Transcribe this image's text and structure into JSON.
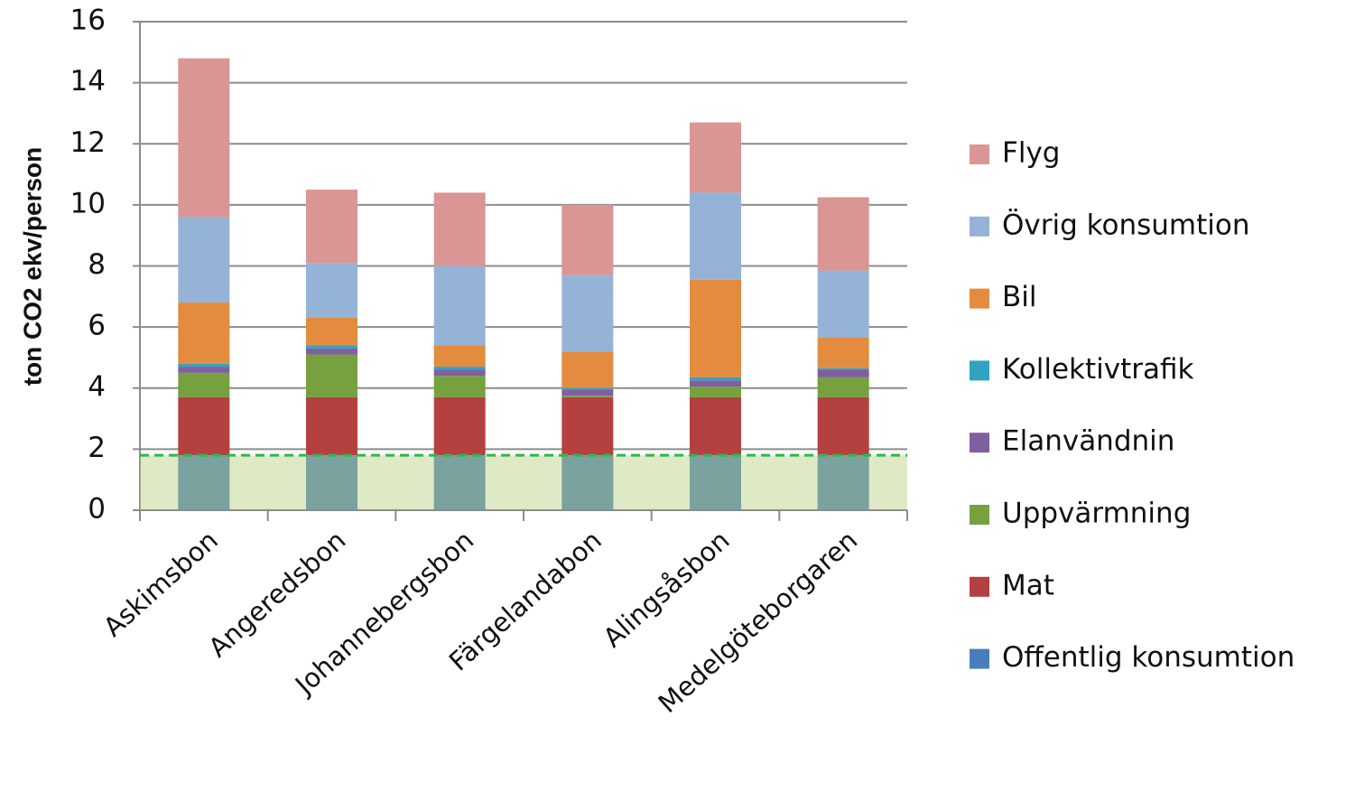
{
  "chart_data": {
    "type": "stacked_bar",
    "y_label": "ton CO2 ekv/person",
    "categories": [
      "Askimsbon",
      "Angeredsbon",
      "Johannebergsbon",
      "Färgelandabon",
      "Alingsåsbon",
      "Medelgöteborgaren"
    ],
    "series": [
      {
        "name": "Offentlig konsumtion",
        "color": "#4a7ebb",
        "values": [
          1.8,
          1.8,
          1.8,
          1.8,
          1.8,
          1.8
        ]
      },
      {
        "name": "Mat",
        "color": "#b54040",
        "values": [
          1.9,
          1.9,
          1.9,
          1.9,
          1.9,
          1.9
        ]
      },
      {
        "name": "Uppvärmning",
        "color": "#77a03f",
        "values": [
          0.8,
          1.4,
          0.7,
          0.05,
          0.35,
          0.65
        ]
      },
      {
        "name": "Elanvändnin",
        "color": "#7f5fa0",
        "values": [
          0.2,
          0.2,
          0.2,
          0.2,
          0.2,
          0.25
        ]
      },
      {
        "name": "Kollektivtrafik",
        "color": "#31a2c0",
        "values": [
          0.1,
          0.1,
          0.1,
          0.05,
          0.1,
          0.05
        ]
      },
      {
        "name": "Bil",
        "color": "#e38b3f",
        "values": [
          2.0,
          0.9,
          0.7,
          1.2,
          3.2,
          1.0
        ]
      },
      {
        "name": "Övrig konsumtion",
        "color": "#95b3d7",
        "values": [
          2.8,
          1.8,
          2.6,
          2.5,
          2.85,
          2.2
        ]
      },
      {
        "name": "Flyg",
        "color": "#d99694",
        "values": [
          5.2,
          2.4,
          2.4,
          2.3,
          2.3,
          2.4
        ]
      }
    ],
    "reference_line": 1.8,
    "reference_color": "#2db84a",
    "ylim": [
      0,
      16
    ],
    "yticks": [
      0,
      2,
      4,
      6,
      8,
      10,
      12,
      14,
      16
    ],
    "grid": true
  }
}
